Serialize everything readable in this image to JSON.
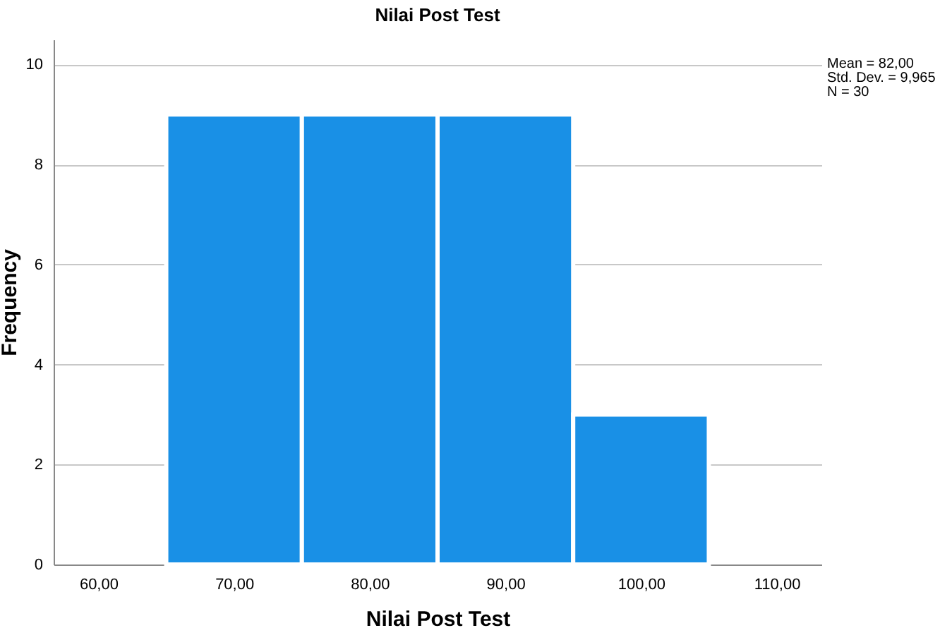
{
  "chart_data": {
    "type": "histogram",
    "title": "Nilai Post Test",
    "xlabel": "Nilai Post Test",
    "ylabel": "Frequency",
    "bins": [
      65,
      75,
      85,
      95,
      105
    ],
    "values": [
      9,
      9,
      9,
      3
    ],
    "color": "#1990e6",
    "xlim": [
      56.7,
      113.3
    ],
    "xticks": [
      {
        "value": 60,
        "label": "60,00"
      },
      {
        "value": 70,
        "label": "70,00"
      },
      {
        "value": 80,
        "label": "80,00"
      },
      {
        "value": 90,
        "label": "90,00"
      },
      {
        "value": 100,
        "label": "100,00"
      },
      {
        "value": 110,
        "label": "110,00"
      }
    ],
    "ylim": [
      0,
      10.5
    ],
    "yticks": [
      0,
      2,
      4,
      6,
      8,
      10
    ],
    "grid": "y",
    "annotations": [
      "Mean = 82,00",
      "Std. Dev. = 9,965",
      "N = 30"
    ]
  }
}
